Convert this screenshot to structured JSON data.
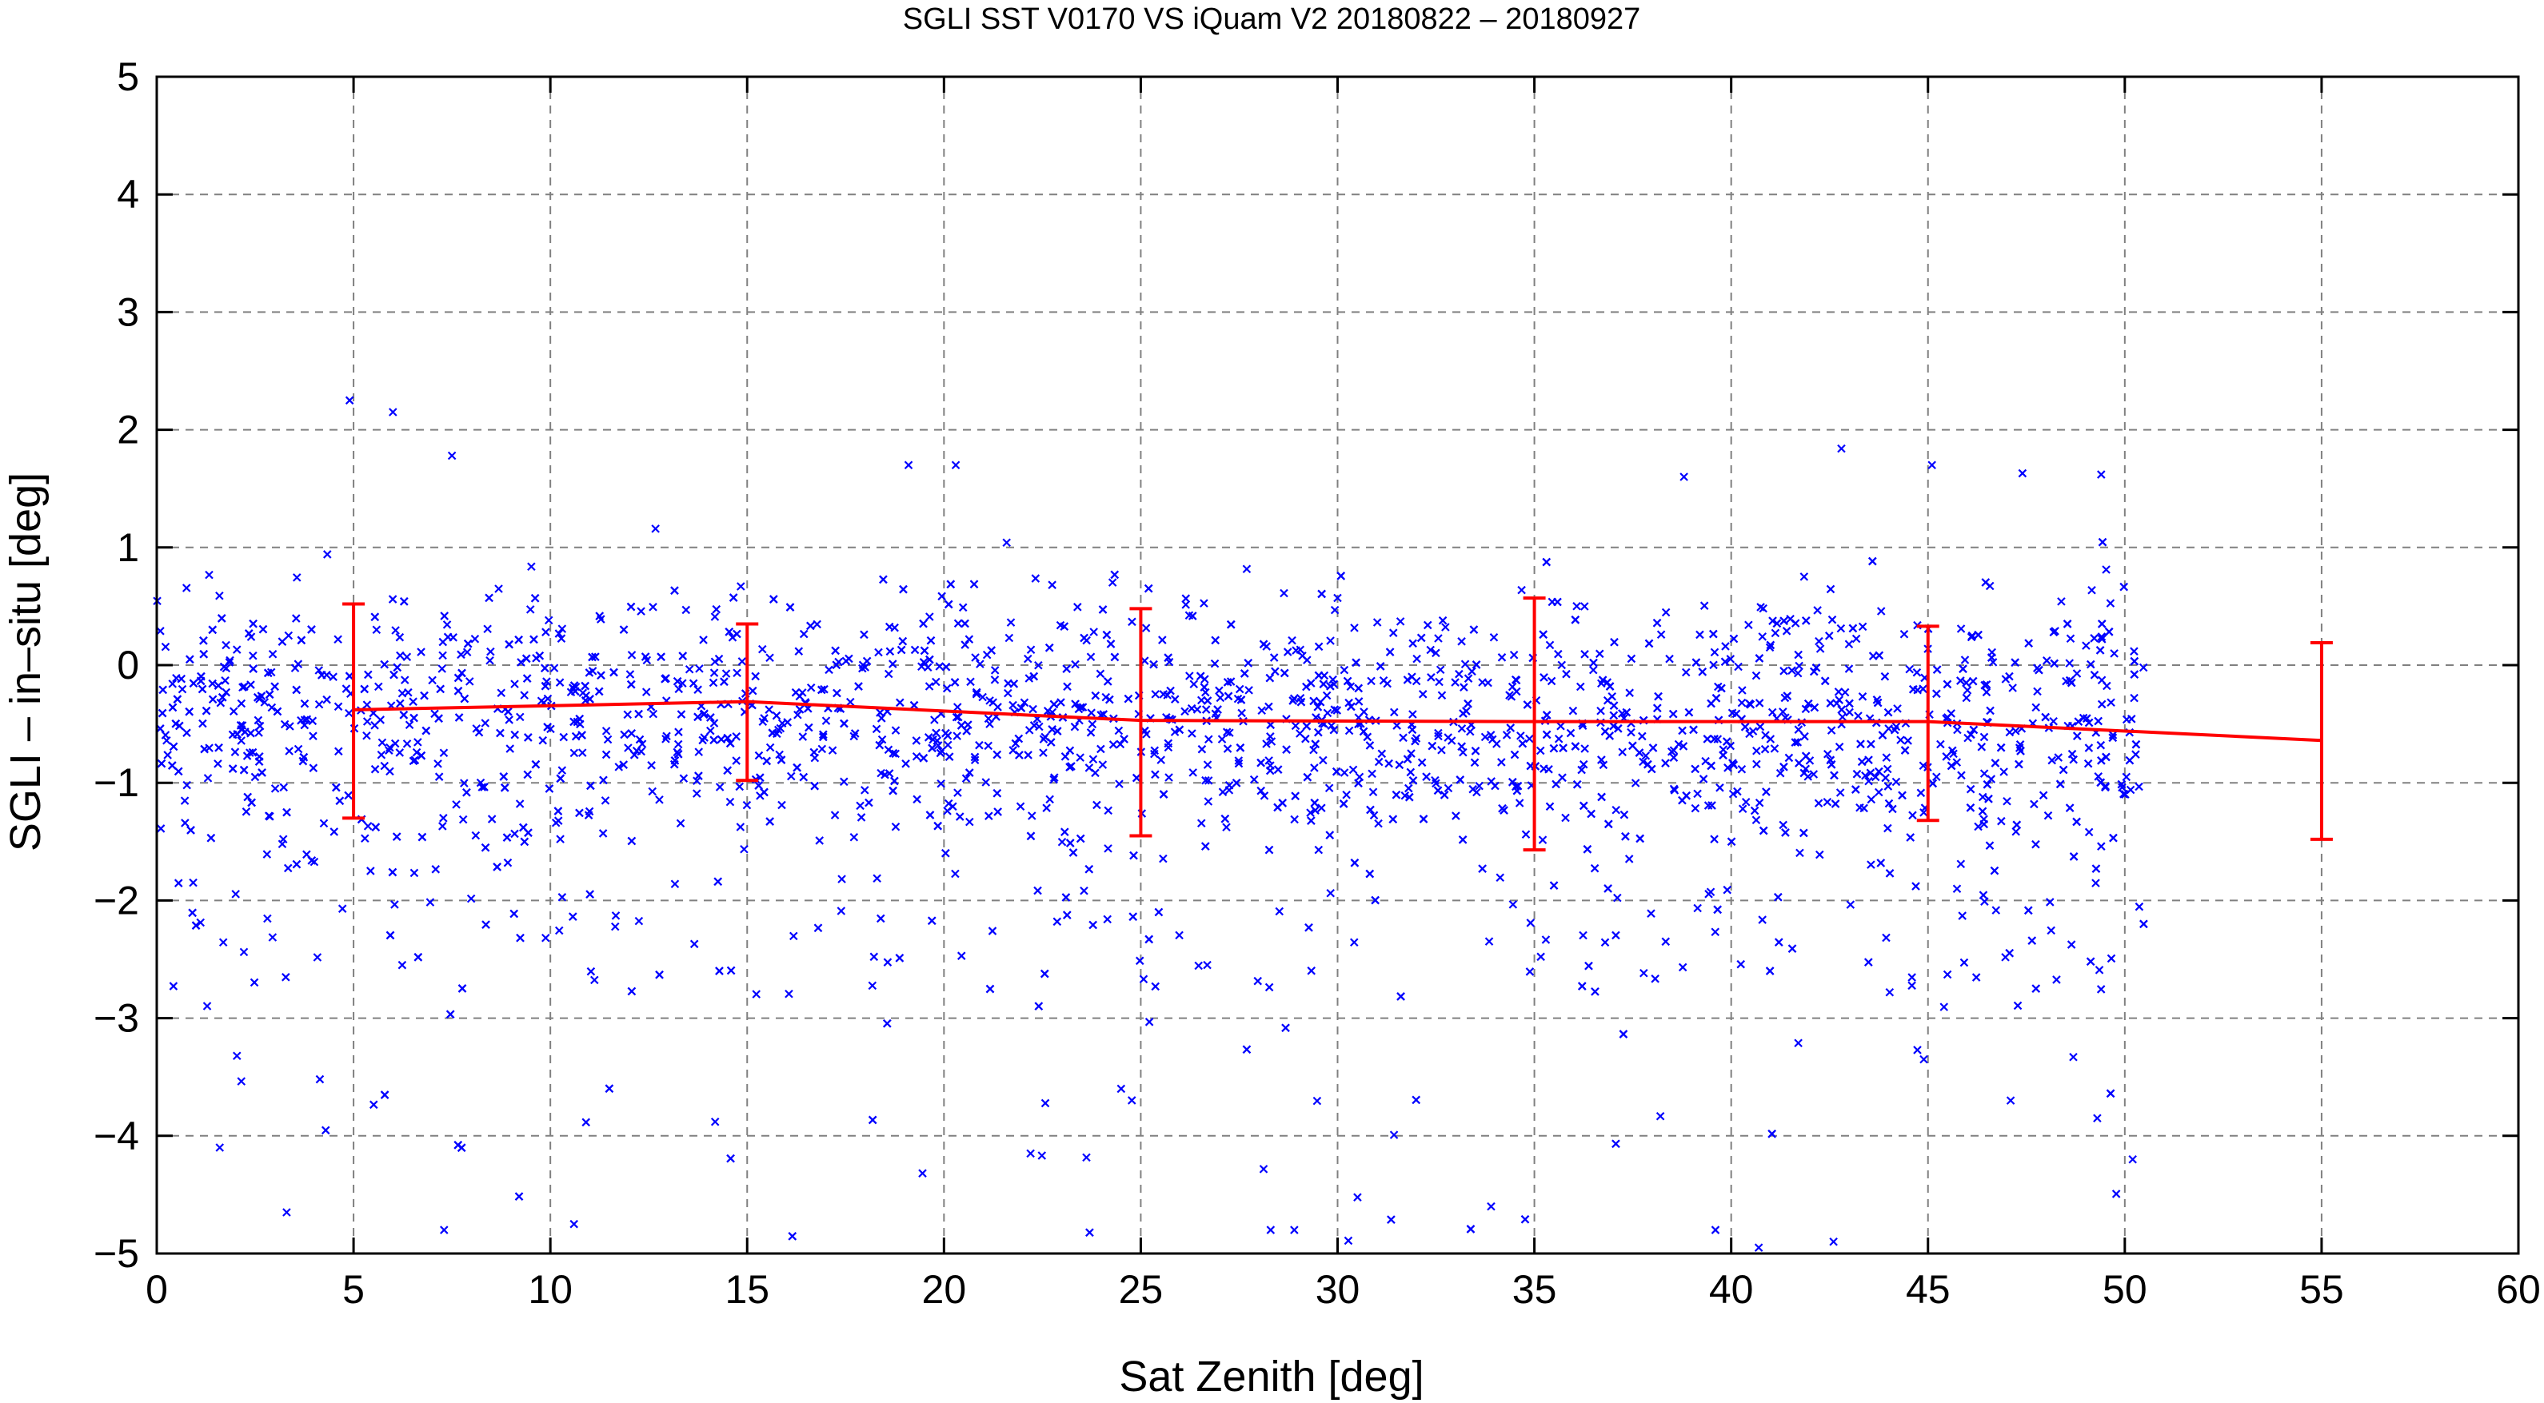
{
  "chart_data": {
    "type": "scatter",
    "title": "SGLI SST V0170 VS iQuam V2 20180822 – 20180927",
    "xlabel": "Sat Zenith [deg]",
    "ylabel": "SGLI – in–situ [deg]",
    "xlim": [
      0,
      60
    ],
    "ylim": [
      -5,
      5
    ],
    "x_ticks": [
      0,
      5,
      10,
      15,
      20,
      25,
      30,
      35,
      40,
      45,
      50,
      55,
      60
    ],
    "y_ticks": [
      -5,
      -4,
      -3,
      -2,
      -1,
      0,
      1,
      2,
      3,
      4,
      5
    ],
    "x_tick_labels": [
      "0",
      "5",
      "10",
      "15",
      "20",
      "25",
      "30",
      "35",
      "40",
      "45",
      "50",
      "55",
      "60"
    ],
    "y_tick_labels": [
      "−5",
      "−4",
      "−3",
      "−2",
      "−1",
      "0",
      "1",
      "2",
      "3",
      "4",
      "5"
    ],
    "grid": true,
    "scatter_color": "#0000ff",
    "mean_color": "#ff0000",
    "scatter_series": {
      "marker": "x",
      "x_range": [
        0,
        50.5
      ],
      "point_count": 2500,
      "center": -0.4,
      "spread": 0.5,
      "outlier_samples": [
        [
          4.9,
          2.25
        ],
        [
          6.0,
          2.15
        ],
        [
          7.5,
          1.78
        ],
        [
          19.1,
          1.7
        ],
        [
          20.3,
          1.7
        ],
        [
          42.8,
          1.84
        ],
        [
          45.1,
          1.7
        ],
        [
          47.4,
          1.63
        ],
        [
          49.4,
          1.62
        ],
        [
          38.8,
          1.6
        ],
        [
          3.3,
          -4.65
        ],
        [
          1.6,
          -4.1
        ],
        [
          7.3,
          -4.8
        ],
        [
          10.6,
          -4.75
        ],
        [
          28.3,
          -4.8
        ],
        [
          28.9,
          -4.8
        ],
        [
          33.9,
          -4.6
        ],
        [
          39.6,
          -4.8
        ],
        [
          40.7,
          -4.95
        ],
        [
          42.6,
          -4.9
        ],
        [
          49.3,
          -3.85
        ],
        [
          50.2,
          -4.2
        ],
        [
          47.1,
          -3.7
        ],
        [
          22.2,
          -4.15
        ],
        [
          24.5,
          -3.6
        ]
      ]
    },
    "binned_means": [
      {
        "x": 5,
        "mean": -0.38,
        "lower": -1.3,
        "upper": 0.52
      },
      {
        "x": 15,
        "mean": -0.31,
        "lower": -0.98,
        "upper": 0.35
      },
      {
        "x": 25,
        "mean": -0.47,
        "lower": -1.45,
        "upper": 0.48
      },
      {
        "x": 35,
        "mean": -0.48,
        "lower": -1.57,
        "upper": 0.57
      },
      {
        "x": 45,
        "mean": -0.48,
        "lower": -1.32,
        "upper": 0.33
      },
      {
        "x": 55,
        "mean": -0.64,
        "lower": -1.48,
        "upper": 0.19
      }
    ]
  }
}
